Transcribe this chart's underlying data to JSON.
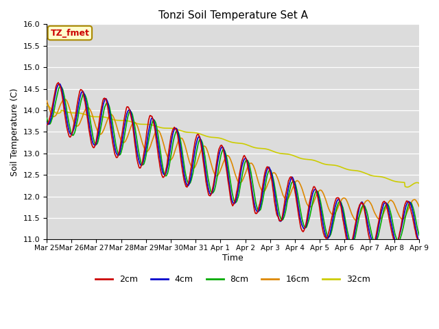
{
  "title": "Tonzi Soil Temperature Set A",
  "xlabel": "Time",
  "ylabel": "Soil Temperature (C)",
  "ylim": [
    11.0,
    16.0
  ],
  "yticks": [
    11.0,
    11.5,
    12.0,
    12.5,
    13.0,
    13.5,
    14.0,
    14.5,
    15.0,
    15.5,
    16.0
  ],
  "xtick_labels": [
    "Mar 25",
    "Mar 26",
    "Mar 27",
    "Mar 28",
    "Mar 29",
    "Mar 30",
    "Mar 31",
    "Apr 1",
    "Apr 2",
    "Apr 3",
    "Apr 4",
    "Apr 5",
    "Apr 6",
    "Apr 7",
    "Apr 8",
    "Apr 9"
  ],
  "colors": {
    "2cm": "#cc0000",
    "4cm": "#0000cc",
    "8cm": "#00aa00",
    "16cm": "#dd8800",
    "32cm": "#cccc00"
  },
  "legend_label": "TZ_fmet",
  "legend_bg": "#ffffcc",
  "legend_border": "#cc8800",
  "bg_color": "#dcdcdc",
  "linewidth": 1.2
}
